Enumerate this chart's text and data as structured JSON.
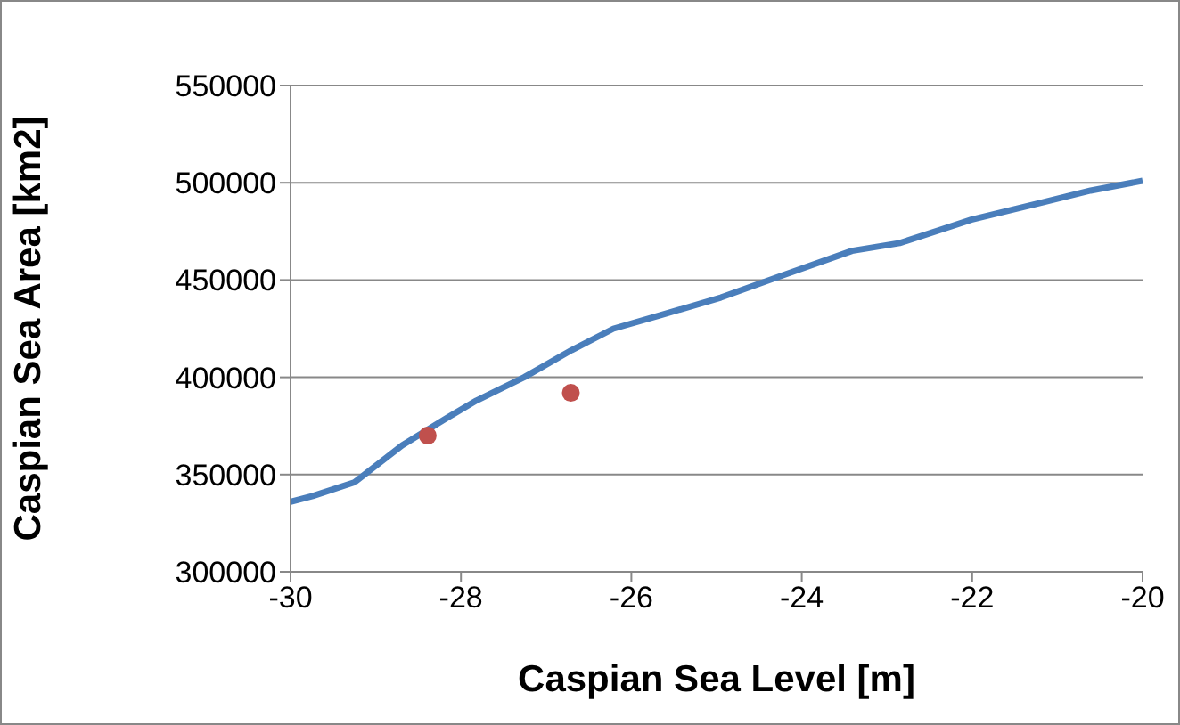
{
  "chart_data": {
    "type": "line",
    "xlabel": "Caspian Sea Level [m]",
    "ylabel": "Caspian Sea Area [km2]",
    "xlim": [
      -30,
      -20
    ],
    "xticks": [
      -30,
      -28,
      -26,
      -24,
      -22,
      -20
    ],
    "ylim": [
      300000,
      550000
    ],
    "yticks": [
      300000,
      350000,
      400000,
      450000,
      500000,
      550000
    ],
    "grid": "y",
    "series": [
      {
        "color": "#4a7ebb",
        "marker": "none",
        "x": [
          -30,
          -29.74,
          -29.25,
          -28.69,
          -28.17,
          -27.82,
          -27.26,
          -26.7,
          -26.21,
          -25.65,
          -24.95,
          -24.25,
          -23.41,
          -22.85,
          -22.01,
          -21.17,
          -20.61,
          -20
        ],
        "values": [
          336000,
          339000,
          346000,
          365000,
          379000,
          388000,
          400000,
          414000,
          425000,
          432000,
          441000,
          452000,
          465000,
          469000,
          481000,
          490000,
          496000,
          501000
        ]
      },
      {
        "type": "scatter",
        "color": "#c0504d",
        "marker": "circle",
        "x": [
          -28.39,
          -26.71
        ],
        "values": [
          370000,
          392000
        ]
      }
    ]
  }
}
